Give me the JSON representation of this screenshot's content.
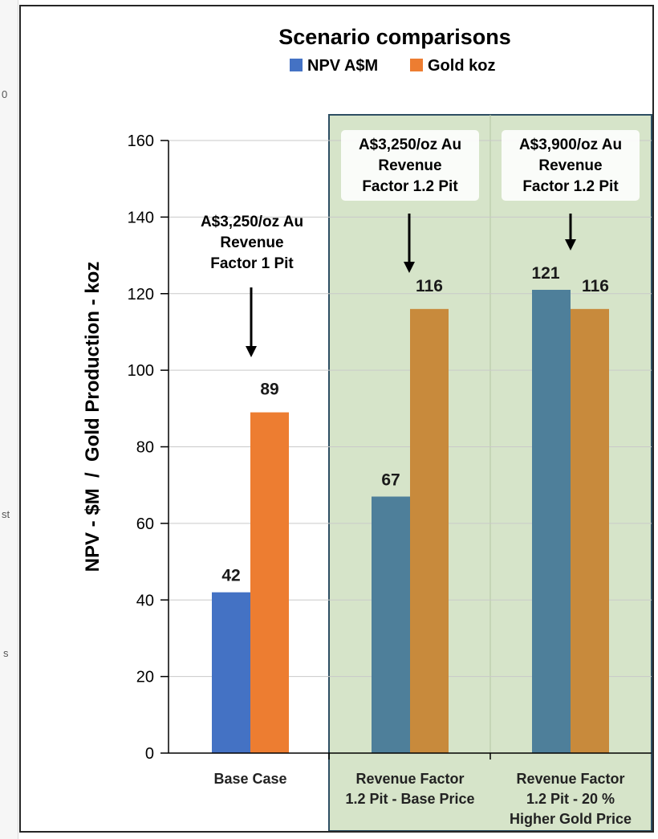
{
  "side_strip": {
    "fragments": [
      "0",
      "st",
      "s"
    ]
  },
  "chart_data": {
    "type": "bar",
    "title": "Scenario comparisons",
    "ylabel": "NPV - $M  /  Gold Production - koz",
    "ylim": [
      0,
      160
    ],
    "yticks": [
      0,
      20,
      40,
      60,
      80,
      100,
      120,
      140,
      160
    ],
    "grid": true,
    "legend_position": "top",
    "categories": [
      [
        "Base Case"
      ],
      [
        "Revenue Factor",
        "1.2 Pit - Base Price"
      ],
      [
        "Revenue Factor",
        "1.2 Pit - 20 %",
        "Higher Gold Price"
      ]
    ],
    "series": [
      {
        "name": "NPV A$M",
        "values": [
          42,
          67,
          121
        ],
        "labels": [
          "42",
          "67",
          "121"
        ],
        "color": "#4472c4"
      },
      {
        "name": "Gold koz",
        "values": [
          89,
          116,
          116
        ],
        "labels": [
          "89",
          "116",
          "116"
        ],
        "color": "#ed7d31"
      }
    ],
    "highlight": {
      "categories": [
        1,
        2
      ],
      "fill": "#d6e4c9",
      "border": "#2d4e63",
      "npv_color": "#4e7f9a",
      "gold_color": "#c88a3c"
    },
    "annotations": [
      {
        "category": 0,
        "lines": [
          "A$3,250/oz Au",
          "Revenue",
          "Factor 1 Pit"
        ]
      },
      {
        "category": 1,
        "lines": [
          "A$3,250/oz Au",
          "Revenue",
          "Factor 1.2 Pit"
        ]
      },
      {
        "category": 2,
        "lines": [
          "A$3,900/oz Au",
          "Revenue",
          "Factor 1.2 Pit"
        ]
      }
    ]
  }
}
